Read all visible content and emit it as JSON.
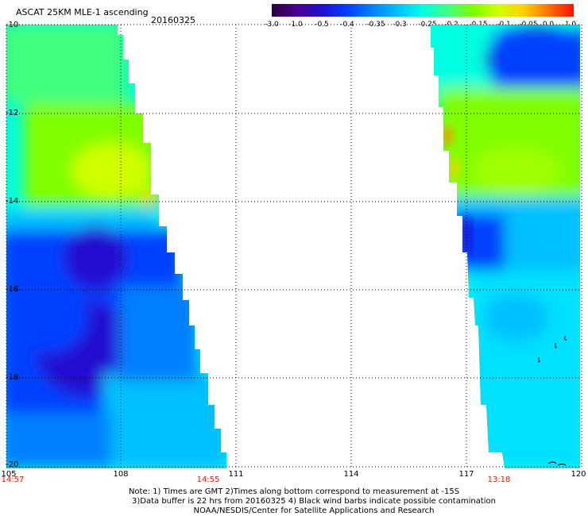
{
  "header": {
    "title": "ASCAT 25KM MLE-1 ascending",
    "date": "20160325"
  },
  "colorbar": {
    "ticks": [
      "-3.0",
      "-1.0",
      "-0.5",
      "-0.4",
      "-0.35",
      "-0.3",
      "-0.25",
      "-0.2",
      "-0.15",
      "-0.1",
      "-0.05",
      "0.0",
      "1.0"
    ],
    "colors": [
      "#2a0040",
      "#4a0090",
      "#2010d0",
      "#0040ff",
      "#0080ff",
      "#00c0ff",
      "#00ffe0",
      "#40ff80",
      "#80ff00",
      "#d0ff00",
      "#ffd000",
      "#ff7000",
      "#ff1000"
    ]
  },
  "map": {
    "lat_labels": [
      "-10",
      "-12",
      "-14",
      "-16",
      "-18",
      "-20"
    ],
    "lon_labels": [
      "105",
      "108",
      "111",
      "114",
      "117",
      "120"
    ],
    "time_labels": [
      "14:57",
      "14:55",
      "13:18"
    ],
    "marker_left": "14:57"
  },
  "notes": {
    "line1": "Note: 1) Times are GMT 2)Times along bottom correspond to measurement at -15S",
    "line2": "3)Data buffer is 22 hrs from 20160325 4) Black wind barbs indicate possible contamination",
    "line3": "NOAA/NESDIS/Center for Satellite Applications and Research"
  },
  "colors": {
    "grid": "#000000",
    "time_label": "#cc2200"
  }
}
